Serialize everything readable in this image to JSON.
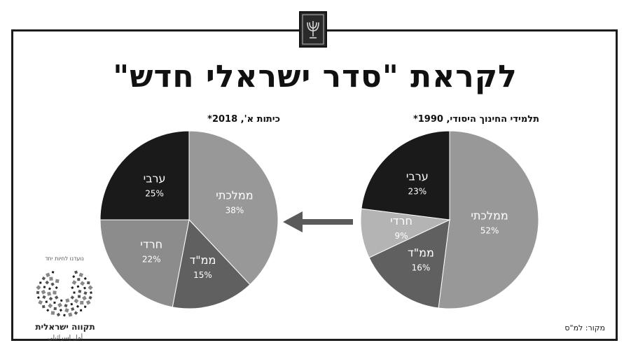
{
  "title": "לקראת \"סדר ישראלי חדש\"",
  "source_label": "מקור: למ\"ס",
  "logo": {
    "name": "תקווה ישראלית",
    "subtitle": "أمل إسرائيلي",
    "arc_text": "נועדנו לחיות יחד"
  },
  "chart_data": [
    {
      "type": "pie",
      "title": "תלמידי החינוך היסודי, 1990*",
      "slices": [
        {
          "label": "ממלכתי",
          "value": 52,
          "value_label": "52%",
          "color": "#989898",
          "text_color": "#ffffff"
        },
        {
          "label": "ממ\"ד",
          "value": 16,
          "value_label": "16%",
          "color": "#606060",
          "text_color": "#ffffff"
        },
        {
          "label": "חרדי",
          "value": 9,
          "value_label": "9%",
          "color": "#b4b4b4",
          "text_color": "#ffffff"
        },
        {
          "label": "ערבי",
          "value": 23,
          "value_label": "23%",
          "color": "#1a1a1a",
          "text_color": "#ffffff"
        }
      ]
    },
    {
      "type": "pie",
      "title": "כיתות א', 2018*",
      "slices": [
        {
          "label": "ממלכתי",
          "value": 38,
          "value_label": "38%",
          "color": "#989898",
          "text_color": "#ffffff"
        },
        {
          "label": "ממ\"ד",
          "value": 15,
          "value_label": "15%",
          "color": "#606060",
          "text_color": "#ffffff"
        },
        {
          "label": "חרדי",
          "value": 22,
          "value_label": "22%",
          "color": "#8c8c8c",
          "text_color": "#ffffff"
        },
        {
          "label": "ערבי",
          "value": 25,
          "value_label": "25%",
          "color": "#1a1a1a",
          "text_color": "#ffffff"
        }
      ]
    }
  ],
  "colors": {
    "arrow": "#5a5a5a",
    "frame": "#1c1c1c"
  }
}
